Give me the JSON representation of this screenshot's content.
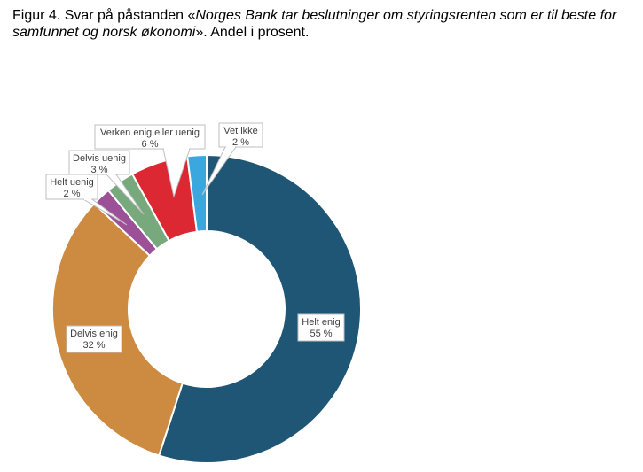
{
  "title": {
    "prefix": "Figur 4. Svar på påstanden «",
    "italic": "Norges Bank tar beslutninger om styringsrenten som er til beste for samfunnet og norsk økonomi",
    "suffix": "». Andel i prosent."
  },
  "chart_data": {
    "type": "pie",
    "variant": "donut",
    "title": "Figur 4. Svar på påstanden «Norges Bank tar beslutninger om styringsrenten som er til beste for samfunnet og norsk økonomi». Andel i prosent.",
    "unit": "%",
    "start": "top, clockwise",
    "slices": [
      {
        "label": "Helt enig",
        "value": 55,
        "value_label": "55 %",
        "color": "#1f5676"
      },
      {
        "label": "Delvis enig",
        "value": 32,
        "value_label": "32 %",
        "color": "#cd8b41"
      },
      {
        "label": "Helt uenig",
        "value": 2,
        "value_label": "2 %",
        "color": "#9b5097"
      },
      {
        "label": "Delvis uenig",
        "value": 3,
        "value_label": "3 %",
        "color": "#78a97d"
      },
      {
        "label": "Verken enig eller uenig",
        "value": 6,
        "value_label": "6 %",
        "color": "#dc2832"
      },
      {
        "label": "Vet ikke",
        "value": 2,
        "value_label": "2 %",
        "color": "#3aa8de"
      }
    ]
  }
}
